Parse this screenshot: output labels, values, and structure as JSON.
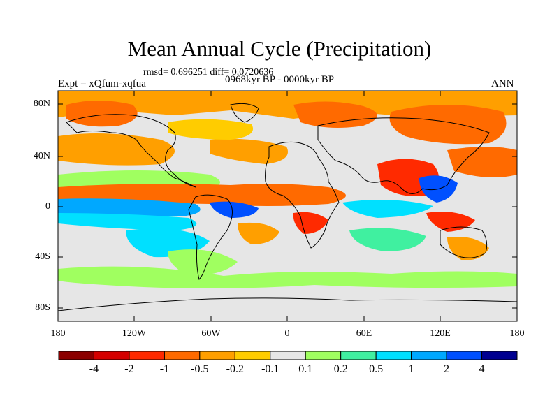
{
  "title": "Mean Annual Cycle (Precipitation)",
  "stats_line": "rmsd= 0.696251 diff= 0.0720636",
  "period": "0968kyr BP - 0000kyr BP",
  "experiment": "Expt = xQfum-xqfua",
  "season": "ANN",
  "lat_labels": [
    "80N",
    "40N",
    "0",
    "40S",
    "80S"
  ],
  "lon_labels": [
    "180",
    "120W",
    "60W",
    "0",
    "60E",
    "120E",
    "180"
  ],
  "colorbar": {
    "labels": [
      "-4",
      "-2",
      "-1",
      "-0.5",
      "-0.2",
      "-0.1",
      "0.1",
      "0.2",
      "0.5",
      "1",
      "2",
      "4"
    ],
    "colors": [
      "#8b0000",
      "#d40000",
      "#ff2a00",
      "#ff6a00",
      "#ff9f00",
      "#ffcc00",
      "#e6e6e6",
      "#a0ff60",
      "#40f0a0",
      "#00e0ff",
      "#00a8ff",
      "#0050ff",
      "#000090"
    ]
  },
  "palette": {
    "neutral": "#e6e6e6",
    "orange": "#ff9f00",
    "red_orange": "#ff6a00",
    "red": "#ff2a00",
    "yellow": "#ffcc00",
    "green": "#a0ff60",
    "teal": "#40f0a0",
    "cyan": "#00e0ff",
    "blue": "#00a8ff",
    "dark_blue": "#0050ff",
    "coast": "#000000"
  }
}
